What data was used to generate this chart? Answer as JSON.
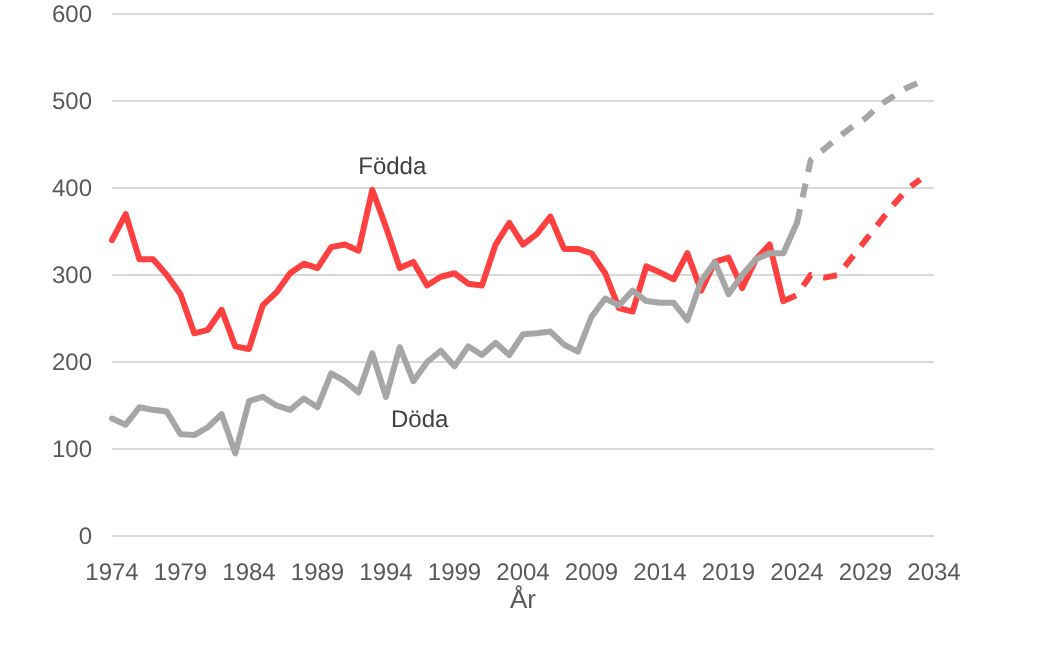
{
  "chart_data": {
    "type": "line",
    "xlabel": "År",
    "xlim": [
      1974,
      2034
    ],
    "xticks": [
      1974,
      1979,
      1984,
      1989,
      1994,
      1999,
      2004,
      2009,
      2014,
      2019,
      2024,
      2029,
      2034
    ],
    "ylim": [
      0,
      600
    ],
    "yticks": [
      0,
      100,
      200,
      300,
      400,
      500,
      600
    ],
    "grid": "y",
    "marker": "none",
    "series": [
      {
        "name": "Födda",
        "color": "#ff4040",
        "line_style": "solid",
        "x": [
          1974,
          1975,
          1976,
          1977,
          1978,
          1979,
          1980,
          1981,
          1982,
          1983,
          1984,
          1985,
          1986,
          1987,
          1988,
          1989,
          1990,
          1991,
          1992,
          1993,
          1994,
          1995,
          1996,
          1997,
          1998,
          1999,
          2000,
          2001,
          2002,
          2003,
          2004,
          2005,
          2006,
          2007,
          2008,
          2009,
          2010,
          2011,
          2012,
          2013,
          2014,
          2015,
          2016,
          2017,
          2018,
          2019,
          2020,
          2021,
          2022,
          2023
        ],
        "values": [
          340,
          370,
          318,
          318,
          300,
          278,
          233,
          237,
          260,
          218,
          215,
          265,
          280,
          302,
          313,
          308,
          332,
          335,
          328,
          398,
          355,
          308,
          315,
          288,
          298,
          302,
          290,
          288,
          335,
          360,
          335,
          347,
          367,
          330,
          330,
          325,
          302,
          262,
          258,
          310,
          303,
          295,
          325,
          282,
          315,
          320,
          285,
          318,
          335,
          270
        ]
      },
      {
        "color": "#ff4040",
        "line_style": "dashed",
        "x": [
          2023,
          2024,
          2025,
          2026,
          2027,
          2028,
          2029,
          2030,
          2031,
          2032,
          2033
        ],
        "values": [
          270,
          277,
          300,
          297,
          300,
          320,
          340,
          360,
          380,
          398,
          410
        ]
      },
      {
        "name": "Döda",
        "color": "#a6a6a6",
        "line_style": "solid",
        "x": [
          1974,
          1975,
          1976,
          1977,
          1978,
          1979,
          1980,
          1981,
          1982,
          1983,
          1984,
          1985,
          1986,
          1987,
          1988,
          1989,
          1990,
          1991,
          1992,
          1993,
          1994,
          1995,
          1996,
          1997,
          1998,
          1999,
          2000,
          2001,
          2002,
          2003,
          2004,
          2005,
          2006,
          2007,
          2008,
          2009,
          2010,
          2011,
          2012,
          2013,
          2014,
          2015,
          2016,
          2017,
          2018,
          2019,
          2020,
          2021,
          2022,
          2023,
          2024
        ],
        "values": [
          135,
          128,
          148,
          145,
          143,
          117,
          116,
          125,
          140,
          95,
          155,
          160,
          150,
          145,
          158,
          148,
          187,
          178,
          165,
          210,
          160,
          217,
          178,
          200,
          213,
          195,
          218,
          208,
          222,
          208,
          232,
          233,
          235,
          220,
          212,
          252,
          273,
          265,
          282,
          270,
          268,
          268,
          248,
          293,
          315,
          278,
          300,
          318,
          325,
          325,
          360
        ]
      },
      {
        "color": "#a6a6a6",
        "line_style": "dashed",
        "x": [
          2024,
          2025,
          2026,
          2027,
          2028,
          2029,
          2030,
          2031,
          2032,
          2033
        ],
        "values": [
          360,
          432,
          445,
          458,
          470,
          480,
          495,
          505,
          515,
          522
        ]
      }
    ]
  }
}
